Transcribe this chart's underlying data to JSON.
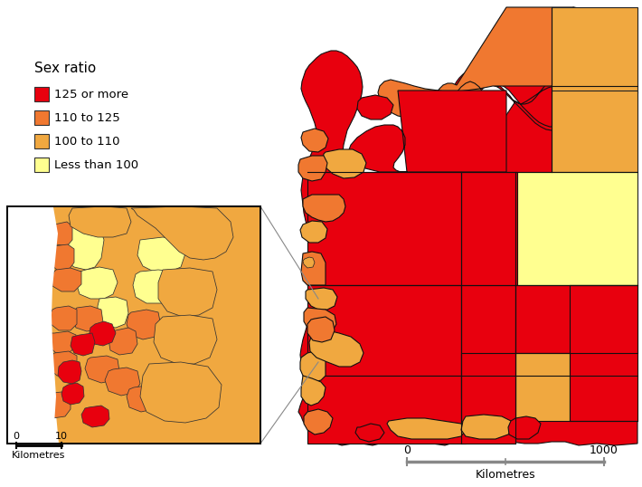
{
  "legend_title": "Sex ratio",
  "legend_items": [
    {
      "label": "125 or more",
      "color": "#e8000e"
    },
    {
      "label": "110 to 125",
      "color": "#f07830"
    },
    {
      "label": "100 to 110",
      "color": "#f0a840"
    },
    {
      "label": "Less than 100",
      "color": "#ffff90"
    }
  ],
  "background_color": "#ffffff",
  "colors": {
    "red": "#e8000e",
    "orange_dark": "#f07830",
    "orange_light": "#f0a840",
    "yellow": "#ffff90",
    "white": "#ffffff"
  },
  "main_scale_label": "Kilometres",
  "main_scale_0": "0",
  "main_scale_1000": "1000",
  "inset_scale_label": "Kilometres",
  "inset_scale_0": "0",
  "inset_scale_10": "10",
  "fig_w": 7.1,
  "fig_h": 5.38,
  "dpi": 100
}
